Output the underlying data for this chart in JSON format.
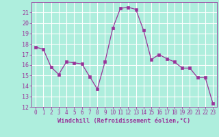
{
  "x": [
    0,
    1,
    2,
    3,
    4,
    5,
    6,
    7,
    8,
    9,
    10,
    11,
    12,
    13,
    14,
    15,
    16,
    17,
    18,
    19,
    20,
    21,
    22,
    23
  ],
  "y": [
    17.7,
    17.5,
    15.8,
    15.1,
    16.3,
    16.2,
    16.1,
    14.9,
    13.7,
    16.3,
    19.5,
    21.4,
    21.5,
    21.3,
    19.3,
    16.5,
    17.0,
    16.6,
    16.3,
    15.7,
    15.7,
    14.8,
    14.8,
    12.3
  ],
  "line_color": "#993399",
  "marker_color": "#993399",
  "bg_color": "#aeeedd",
  "grid_color": "#ffffff",
  "xlabel": "Windchill (Refroidissement éolien,°C)",
  "xlabel_color": "#993399",
  "tick_color": "#993399",
  "ylim": [
    12,
    22
  ],
  "xlim": [
    -0.5,
    23.5
  ],
  "yticks": [
    12,
    13,
    14,
    15,
    16,
    17,
    18,
    19,
    20,
    21
  ],
  "xticks": [
    0,
    1,
    2,
    3,
    4,
    5,
    6,
    7,
    8,
    9,
    10,
    11,
    12,
    13,
    14,
    15,
    16,
    17,
    18,
    19,
    20,
    21,
    22,
    23
  ]
}
